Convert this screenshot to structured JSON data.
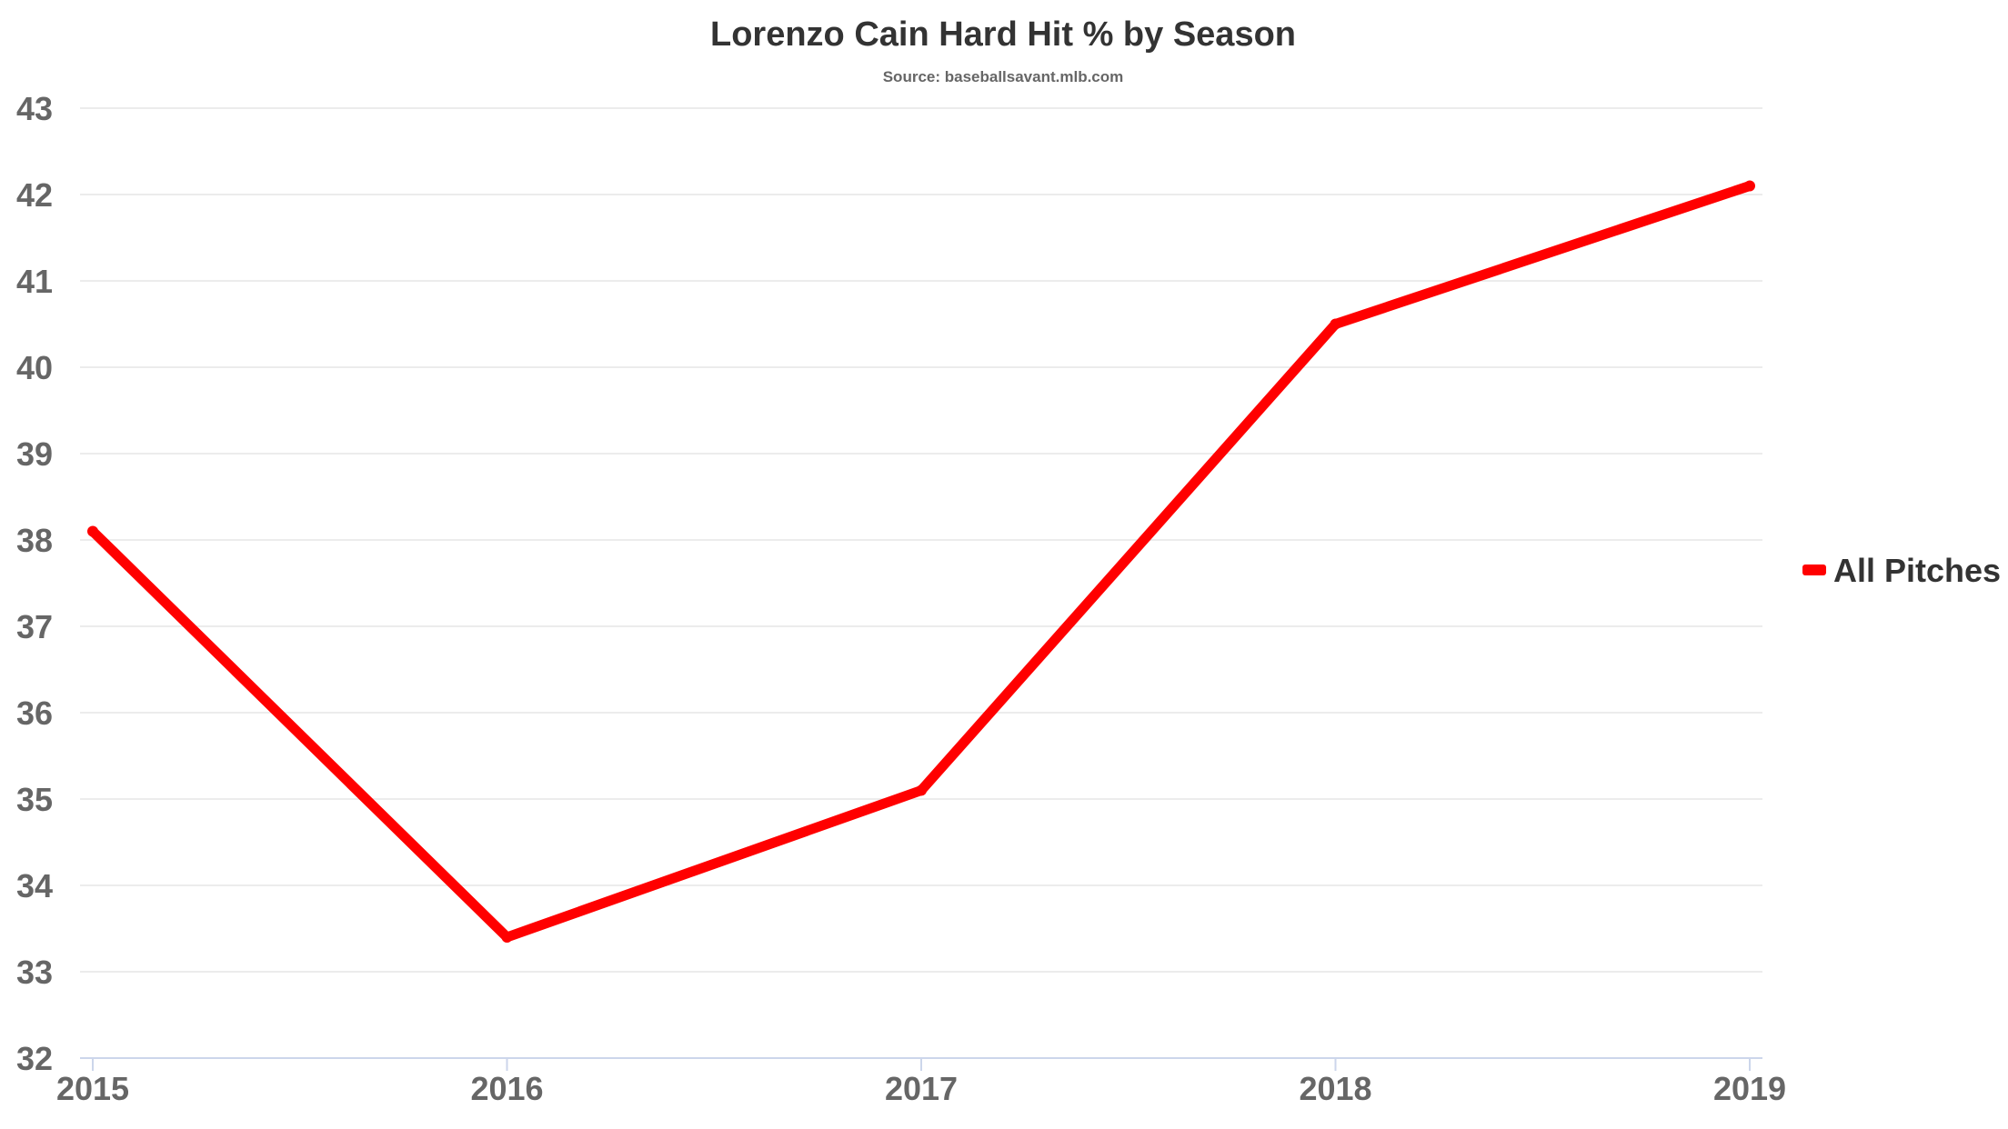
{
  "chart_data": {
    "type": "line",
    "title": "Lorenzo Cain Hard Hit % by Season",
    "subtitle": "Source: baseballsavant.mlb.com",
    "xlabel": "",
    "ylabel": "",
    "categories": [
      "2015",
      "2016",
      "2017",
      "2018",
      "2019"
    ],
    "series": [
      {
        "name": "All Pitches",
        "color": "#ff0000",
        "values": [
          38.1,
          33.4,
          35.1,
          40.5,
          42.1
        ]
      }
    ],
    "ylim": [
      32,
      43
    ],
    "yticks": [
      32,
      33,
      34,
      35,
      36,
      37,
      38,
      39,
      40,
      41,
      42,
      43
    ],
    "grid": true,
    "legend_position": "right"
  }
}
